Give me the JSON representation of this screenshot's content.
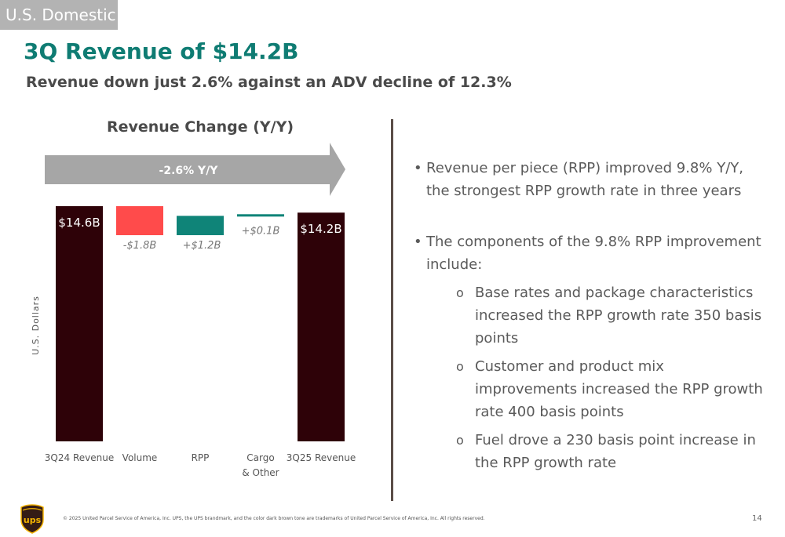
{
  "header": {
    "section": "U.S. Domestic",
    "title": "3Q Revenue of $14.2B",
    "subtitle": "Revenue down just 2.6% against an ADV decline of 12.3%"
  },
  "colors": {
    "dark": "#2e0208",
    "red": "#ff4b4b",
    "teal": "#0f8478",
    "arrow": "#a6a6a6"
  },
  "chart_data": {
    "type": "bar",
    "subtype": "waterfall",
    "title": "Revenue Change (Y/Y)",
    "ylabel": "U.S. Dollars",
    "ylim": [
      0,
      14.6
    ],
    "banner": "-2.6% Y/Y",
    "categories": [
      "3Q24 Revenue",
      "Volume",
      "RPP",
      "Cargo\n& Other",
      "3Q25 Revenue"
    ],
    "bars": [
      {
        "label": "$14.6B",
        "start": 0,
        "end": 14.6,
        "kind": "total"
      },
      {
        "label": "-$1.8B",
        "start": 14.6,
        "end": 12.8,
        "kind": "decrease"
      },
      {
        "label": "+$1.2B",
        "start": 12.8,
        "end": 14.0,
        "kind": "increase"
      },
      {
        "label": "+$0.1B",
        "start": 14.0,
        "end": 14.1,
        "kind": "increase"
      },
      {
        "label": "$14.2B",
        "start": 0,
        "end": 14.2,
        "kind": "total"
      }
    ]
  },
  "bullets": [
    {
      "text": "Revenue per piece (RPP) improved 9.8% Y/Y, the strongest RPP growth rate in three years",
      "subs": []
    },
    {
      "text": "The components of the 9.8% RPP improvement include:",
      "subs": [
        "Base rates and package characteristics increased the RPP growth rate 350 basis points",
        "Customer and product mix improvements increased the RPP growth rate 400 basis points",
        "Fuel drove a 230 basis point increase in the RPP growth rate"
      ]
    }
  ],
  "bullet_glyph": "•",
  "sub_glyph": "o",
  "footer": "© 2025 United Parcel Service of America, Inc. UPS, the UPS brandmark, and the color dark brown tone are trademarks of United Parcel Service of America, Inc. All rights reserved.",
  "page_number": "14",
  "logo_text": "ups"
}
